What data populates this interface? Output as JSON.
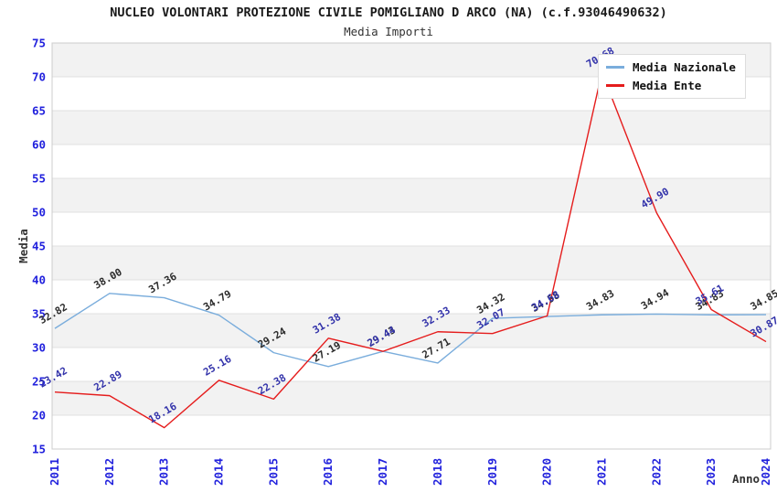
{
  "title": "NUCLEO VOLONTARI PROTEZIONE CIVILE POMIGLIANO D ARCO (NA) (c.f.93046490632)",
  "subtitle": "Media Importi",
  "legend": {
    "items": [
      {
        "label": "Media Nazionale",
        "color": "#7aaddc"
      },
      {
        "label": "Media Ente",
        "color": "#e51c1c"
      }
    ]
  },
  "chart_data": {
    "type": "line",
    "x": [
      "2011",
      "2012",
      "2013",
      "2014",
      "2015",
      "2016",
      "2017",
      "2018",
      "2019",
      "2020",
      "2021",
      "2022",
      "2023",
      "2024"
    ],
    "xlabel": "Anno",
    "ylabel": "Media",
    "ylim": [
      15,
      75
    ],
    "ytick_step": 5,
    "grid": true,
    "banded_background": true,
    "band_color": "#f2f2f2",
    "gridline_color": "#e0e0e0",
    "border_color": "#cccccc",
    "axis_tick_color": "#2222dd",
    "axis_title_color": "#333333",
    "legend_position": "top-right",
    "series": [
      {
        "name": "Media Nazionale",
        "color": "#7aaddc",
        "label_color": "#2b2b2b",
        "values": [
          32.82,
          38.0,
          37.36,
          34.79,
          29.24,
          27.19,
          29.43,
          27.71,
          34.32,
          34.58,
          34.83,
          34.94,
          34.83,
          34.85
        ]
      },
      {
        "name": "Media Ente",
        "color": "#e51c1c",
        "label_color": "#3333aa",
        "values": [
          23.42,
          22.89,
          18.16,
          25.16,
          22.38,
          31.38,
          29.44,
          32.33,
          32.07,
          34.68,
          70.68,
          49.9,
          35.61,
          30.87
        ]
      }
    ]
  }
}
